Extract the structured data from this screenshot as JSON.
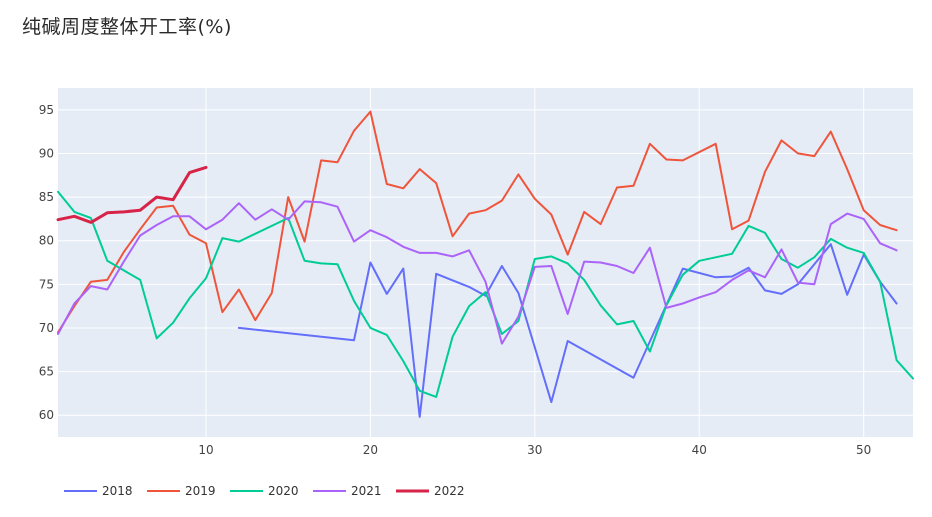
{
  "chart_data": {
    "type": "line",
    "title": "纯碱周度整体开工率(%)",
    "xlabel": "",
    "ylabel": "",
    "xlim": [
      1,
      53
    ],
    "ylim": [
      57.5,
      97.5
    ],
    "x_ticks": [
      10,
      20,
      30,
      40,
      50
    ],
    "y_ticks": [
      60,
      65,
      70,
      75,
      80,
      85,
      90,
      95
    ],
    "grid": true,
    "legend_position": "bottom-left",
    "series": [
      {
        "name": "2018",
        "color": "#636efa",
        "x": [
          12,
          19,
          20,
          21,
          22,
          23,
          24,
          26,
          27,
          28,
          29,
          31,
          32,
          36,
          39,
          41,
          42,
          43,
          44,
          45,
          46,
          48,
          49,
          50,
          51,
          52
        ],
        "y": [
          70,
          68.6,
          77.5,
          73.9,
          76.8,
          59.8,
          76.2,
          74.7,
          73.7,
          77.1,
          74,
          61.5,
          68.5,
          64.3,
          76.8,
          75.8,
          75.9,
          76.9,
          74.3,
          73.9,
          75,
          79.6,
          73.8,
          78.4,
          75.3,
          72.8
        ]
      },
      {
        "name": "2019",
        "color": "#ef553b",
        "x": [
          1,
          2,
          3,
          4,
          5,
          6,
          7,
          8,
          9,
          10,
          11,
          12,
          13,
          14,
          15,
          16,
          17,
          18,
          19,
          20,
          21,
          22,
          23,
          24,
          25,
          26,
          27,
          28,
          29,
          30,
          31,
          32,
          33,
          34,
          35,
          36,
          37,
          38,
          39,
          41,
          42,
          43,
          44,
          45,
          46,
          47,
          48,
          49,
          50,
          51,
          52
        ],
        "y": [
          69.5,
          72.5,
          75.3,
          75.5,
          78.7,
          81.3,
          83.8,
          84,
          80.7,
          79.7,
          71.8,
          74.4,
          70.9,
          74,
          85,
          79.9,
          89.2,
          89,
          92.6,
          94.8,
          86.5,
          86,
          88.2,
          86.6,
          80.5,
          83.1,
          83.5,
          84.6,
          87.6,
          84.8,
          83,
          78.4,
          83.3,
          81.9,
          86.1,
          86.3,
          91.1,
          89.3,
          89.2,
          91.1,
          81.3,
          82.3,
          87.9,
          91.5,
          90,
          89.7,
          92.5,
          88.2,
          83.5,
          81.8,
          81.2
        ]
      },
      {
        "name": "2020",
        "color": "#00cc96",
        "x": [
          1,
          2,
          3,
          4,
          5,
          6,
          7,
          8,
          9,
          10,
          11,
          12,
          15,
          16,
          17,
          18,
          19,
          20,
          21,
          22,
          23,
          24,
          25,
          26,
          27,
          28,
          29,
          30,
          31,
          32,
          33,
          34,
          35,
          36,
          37,
          38,
          39,
          40,
          41,
          42,
          43,
          44,
          45,
          46,
          47,
          48,
          49,
          50,
          51,
          52,
          53
        ],
        "y": [
          85.6,
          83.3,
          82.6,
          77.7,
          76.6,
          75.5,
          68.8,
          70.6,
          73.4,
          75.7,
          80.3,
          79.9,
          82.6,
          77.7,
          77.4,
          77.3,
          73.1,
          70,
          69.2,
          66.2,
          62.8,
          62.1,
          69,
          72.5,
          74.1,
          69.3,
          70.8,
          77.9,
          78.2,
          77.4,
          75.5,
          72.6,
          70.4,
          70.8,
          67.3,
          72.6,
          76.1,
          77.7,
          78.1,
          78.5,
          81.7,
          80.9,
          77.9,
          76.9,
          78.1,
          80.2,
          79.2,
          78.6,
          75.3,
          66.3,
          64.2
        ]
      },
      {
        "name": "2021",
        "color": "#ab63fa",
        "x": [
          1,
          2,
          3,
          4,
          5,
          6,
          7,
          8,
          9,
          10,
          11,
          12,
          13,
          14,
          15,
          16,
          17,
          18,
          19,
          20,
          21,
          22,
          23,
          24,
          25,
          26,
          27,
          28,
          29,
          30,
          31,
          32,
          33,
          34,
          35,
          36,
          37,
          38,
          39,
          40,
          41,
          42,
          43,
          44,
          45,
          46,
          47,
          48,
          49,
          50,
          51,
          52
        ],
        "y": [
          69.3,
          72.8,
          74.8,
          74.4,
          77.6,
          80.6,
          81.8,
          82.8,
          82.8,
          81.3,
          82.4,
          84.3,
          82.4,
          83.6,
          82.4,
          84.5,
          84.4,
          83.9,
          79.9,
          81.2,
          80.4,
          79.3,
          78.6,
          78.6,
          78.2,
          78.9,
          75.3,
          68.2,
          71.3,
          77,
          77.1,
          71.6,
          77.6,
          77.5,
          77.1,
          76.3,
          79.2,
          72.3,
          72.8,
          73.5,
          74.1,
          75.5,
          76.6,
          75.8,
          79,
          75.2,
          75,
          81.9,
          83.1,
          82.5,
          79.7,
          78.9
        ]
      },
      {
        "name": "2022",
        "color": "#d62347",
        "x": [
          1,
          2,
          3,
          4,
          5,
          6,
          7,
          8,
          9,
          10
        ],
        "y": [
          82.4,
          82.8,
          82.1,
          83.2,
          83.3,
          83.5,
          85,
          84.7,
          87.8,
          88.4
        ]
      }
    ]
  }
}
